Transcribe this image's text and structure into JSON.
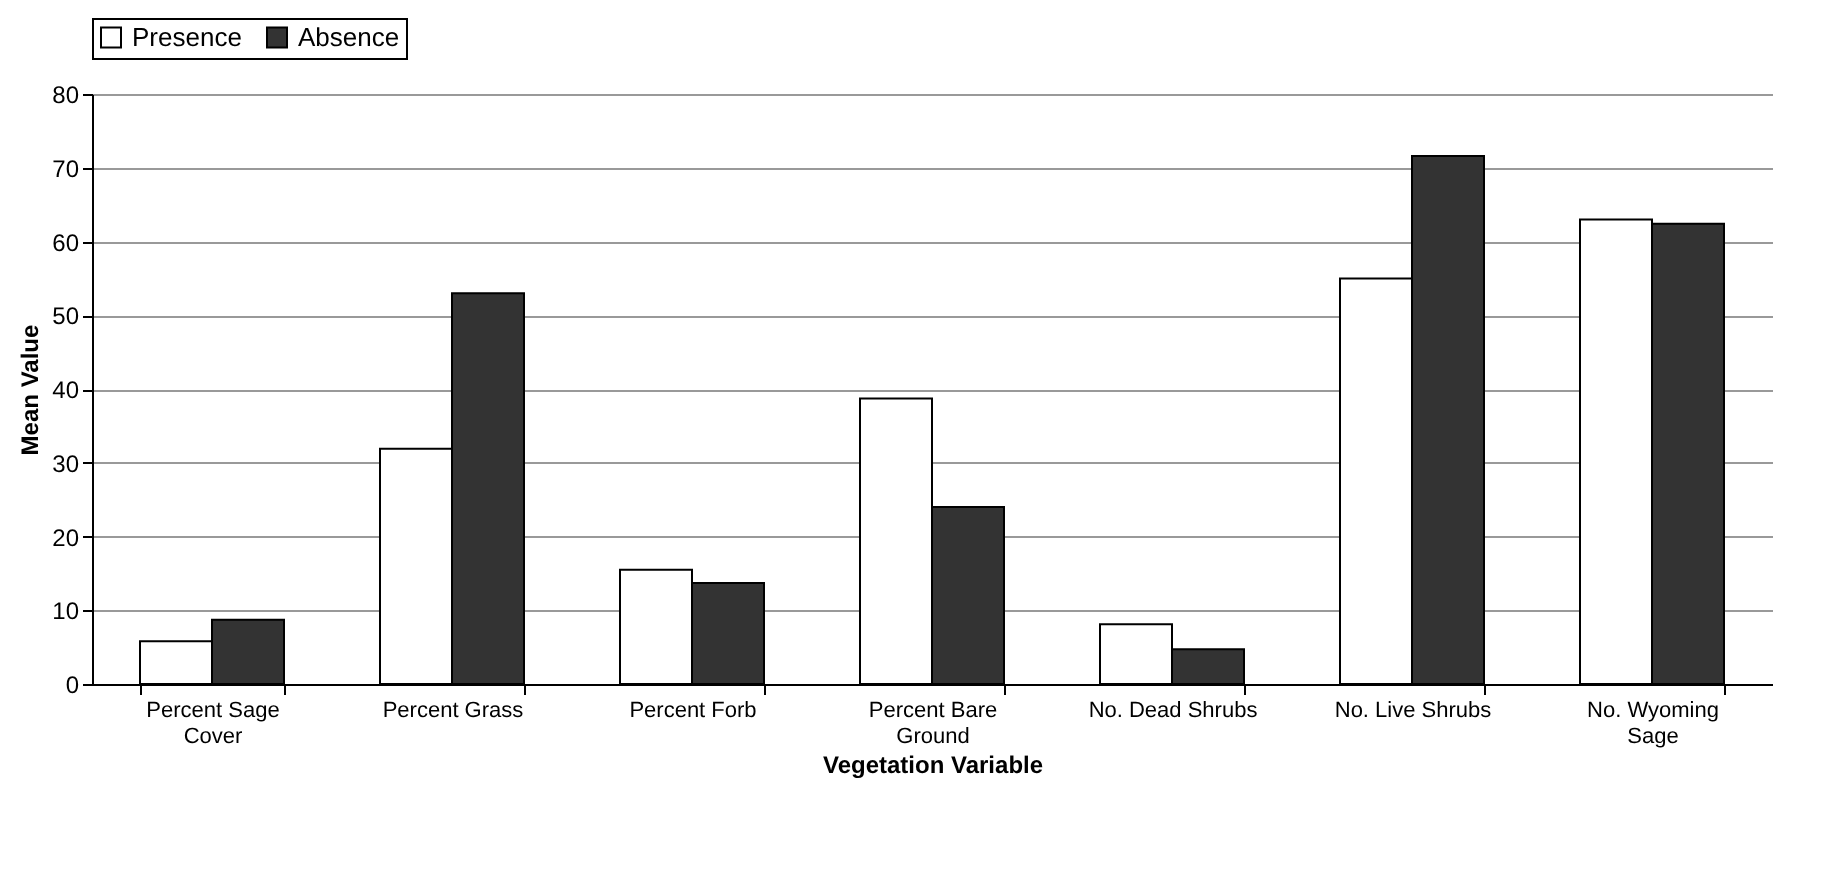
{
  "chart_data": {
    "type": "bar",
    "categories": [
      "Percent Sage Cover",
      "Percent Grass",
      "Percent Forb",
      "Percent Bare Ground",
      "No. Dead Shrubs",
      "No. Live Shrubs",
      "No. Wyoming Sage"
    ],
    "series": [
      {
        "name": "Presence",
        "color": "#ffffff",
        "values": [
          5.8,
          31.9,
          15.5,
          38.7,
          8.1,
          55,
          63
        ]
      },
      {
        "name": "Absence",
        "color": "#333333",
        "values": [
          8.7,
          53,
          13.7,
          24,
          4.7,
          71.6,
          62.4
        ]
      }
    ],
    "xlabel": "Vegetation Variable",
    "ylabel": "Mean Value",
    "ylim": [
      0,
      80
    ],
    "yticks": [
      0,
      10,
      20,
      30,
      40,
      50,
      60,
      70,
      80
    ],
    "grid": "y",
    "legend": "top"
  }
}
